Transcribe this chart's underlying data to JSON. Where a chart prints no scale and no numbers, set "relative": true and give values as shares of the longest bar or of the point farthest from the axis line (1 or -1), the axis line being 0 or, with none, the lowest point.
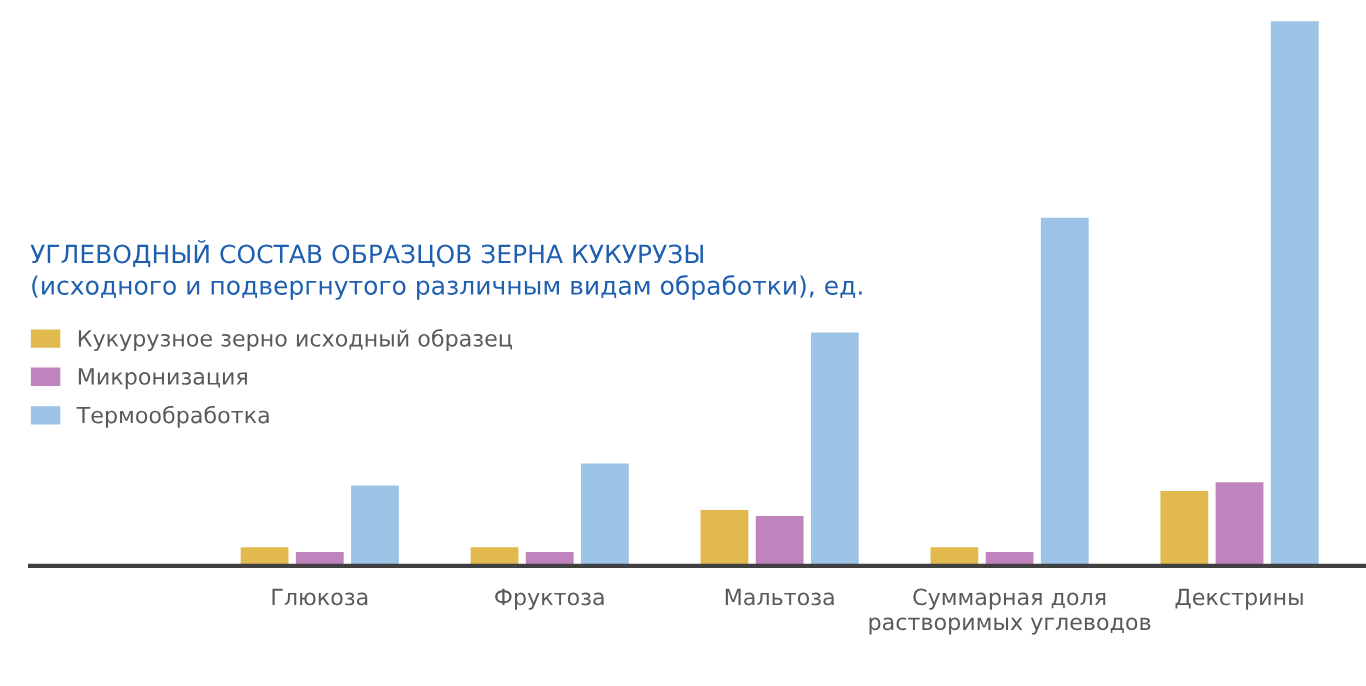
{
  "chart_data": {
    "type": "bar",
    "relative": true,
    "title": "УГЛЕВОДНЫЙ СОСТАВ ОБРАЗЦОВ ЗЕРНА КУКУРУЗЫ",
    "subtitle": "(исходного и подвергнутого различным видам обработки), ед.",
    "categories": [
      "Глюкоза",
      "Фруктоза",
      "Мальтоза",
      "Суммарная доля\nрастворимых углеводов",
      "Декстрины"
    ],
    "series": [
      {
        "name": "Кукурузное зерно исходный образец",
        "color": "#e2b94c",
        "values": [
          0.037,
          0.037,
          0.105,
          0.037,
          0.14
        ]
      },
      {
        "name": "Микронизация",
        "color": "#bf84bd",
        "values": [
          0.028,
          0.028,
          0.094,
          0.028,
          0.156
        ]
      },
      {
        "name": "Термообработка",
        "color": "#9dc3e6",
        "values": [
          0.15,
          0.19,
          0.43,
          0.64,
          1
        ]
      }
    ],
    "legend": "left",
    "grid": false
  }
}
